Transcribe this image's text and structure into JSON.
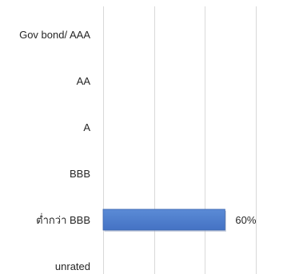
{
  "chart_data": {
    "type": "bar",
    "orientation": "horizontal",
    "categories": [
      "Gov bond/ AAA",
      "AA",
      "A",
      "BBB",
      "ต่ำกว่า BBB",
      "unrated"
    ],
    "values": [
      0,
      0,
      0,
      0,
      60,
      0
    ],
    "data_labels": [
      "",
      "",
      "",
      "",
      "60%",
      ""
    ],
    "xlim": [
      0,
      100
    ],
    "grid": true,
    "legend": "none",
    "bar_color": "#4472C4",
    "bar_color_light": "#5b8bd6",
    "gridline_color": "#d9d9d9"
  }
}
